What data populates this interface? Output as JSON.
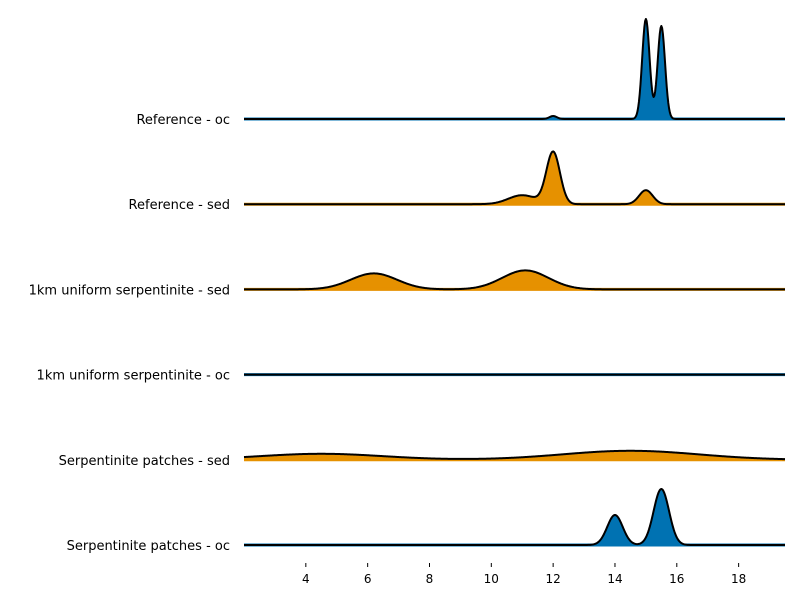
{
  "chart_data": {
    "type": "ridgeline",
    "title": "",
    "xlabel": "",
    "ylabel": "",
    "xlim": [
      2.0,
      19.5
    ],
    "x_ticks": [
      4,
      6,
      8,
      10,
      12,
      14,
      16,
      18
    ],
    "grid": false,
    "colors": {
      "oc": "#0072b2",
      "sed": "#e69100"
    },
    "rows": [
      {
        "label": "Reference - oc",
        "color": "#0072b2",
        "peaks": [
          {
            "mu": 12.0,
            "sigma": 0.12,
            "height": 0.03
          },
          {
            "mu": 15.0,
            "sigma": 0.12,
            "height": 1.0
          },
          {
            "mu": 15.5,
            "sigma": 0.12,
            "height": 0.93
          }
        ]
      },
      {
        "label": "Reference - sed",
        "color": "#e69100",
        "peaks": [
          {
            "mu": 11.0,
            "sigma": 0.45,
            "height": 0.09
          },
          {
            "mu": 12.0,
            "sigma": 0.22,
            "height": 0.52
          },
          {
            "mu": 15.0,
            "sigma": 0.22,
            "height": 0.14
          }
        ]
      },
      {
        "label": "1km uniform serpentinite - sed",
        "color": "#e69100",
        "peaks": [
          {
            "mu": 6.2,
            "sigma": 0.75,
            "height": 0.16
          },
          {
            "mu": 11.1,
            "sigma": 0.75,
            "height": 0.19
          }
        ]
      },
      {
        "label": "1km uniform serpentinite - oc",
        "color": "#0072b2",
        "peaks": []
      },
      {
        "label": "Serpentinite patches - sed",
        "color": "#e69100",
        "peaks": [
          {
            "mu": 4.5,
            "sigma": 2.0,
            "height": 0.06
          },
          {
            "mu": 14.5,
            "sigma": 2.2,
            "height": 0.09
          }
        ]
      },
      {
        "label": "Serpentinite patches - oc",
        "color": "#0072b2",
        "peaks": [
          {
            "mu": 14.0,
            "sigma": 0.25,
            "height": 0.3
          },
          {
            "mu": 15.5,
            "sigma": 0.25,
            "height": 0.56
          }
        ]
      }
    ]
  }
}
